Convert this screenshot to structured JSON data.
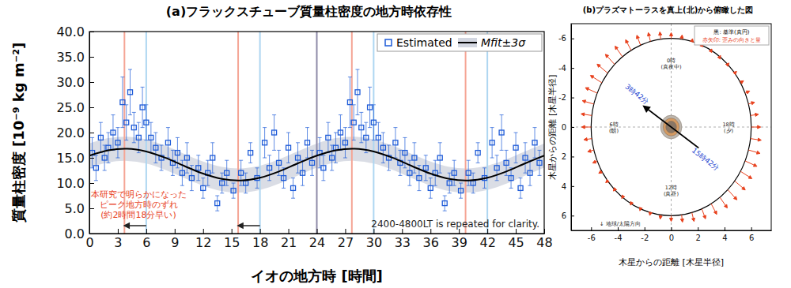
{
  "chart_data": [
    {
      "type": "scatter",
      "title": "(a)フラックスチューブ質量柱密度の地方時依存性",
      "x_label": "イオの地方時 [時間]",
      "y_label": "質量柱密度 [10⁻⁹ kg m⁻²]",
      "xlim": [
        0,
        48
      ],
      "ylim": [
        0,
        40
      ],
      "xticks": [
        0,
        3,
        6,
        9,
        12,
        15,
        18,
        21,
        24,
        27,
        30,
        33,
        36,
        39,
        42,
        45,
        48
      ],
      "yticks": [
        {
          "value": 0,
          "label": "0.0"
        },
        {
          "value": 5,
          "label": "5.0"
        },
        {
          "value": 10,
          "label": "10.0"
        },
        {
          "value": 15,
          "label": "15.0"
        },
        {
          "value": 20,
          "label": "20.0"
        },
        {
          "value": 25,
          "label": "25.0"
        },
        {
          "value": 30,
          "label": "30.0"
        },
        {
          "value": 35,
          "label": "35.0"
        },
        {
          "value": 40,
          "label": "40.0"
        }
      ],
      "legend": "upper right",
      "series": [
        {
          "name": "Estimated",
          "type": "scatter",
          "marker": "square",
          "color": "#1e5bd8",
          "x": [
            0.3,
            0.7,
            1.2,
            1.6,
            2.0,
            2.5,
            3.0,
            3.5,
            3.9,
            4.3,
            4.7,
            5.2,
            5.6,
            6.0,
            6.5,
            7.0,
            7.6,
            8.3,
            8.8,
            9.3,
            9.8,
            10.3,
            10.8,
            11.5,
            12.0,
            12.5,
            13.0,
            13.5,
            14.0,
            14.5,
            15.2,
            16.0,
            16.5,
            17.0,
            17.7,
            18.5,
            19.0,
            19.5,
            20.0,
            20.5,
            21.0,
            21.5,
            22.0,
            22.5,
            23.0,
            23.5,
            24.3,
            24.7,
            25.2,
            25.6,
            26.0,
            26.5,
            27.0,
            27.5,
            27.9,
            28.3,
            28.7,
            29.2,
            29.6,
            30.0,
            30.5,
            31.0,
            31.6,
            32.3,
            32.8,
            33.3,
            33.8,
            34.3,
            34.8,
            35.5,
            36.0,
            36.5,
            37.0,
            37.5,
            38.0,
            38.5,
            39.2,
            40.0,
            40.5,
            41.0,
            41.7,
            42.5,
            43.0,
            43.5,
            44.0,
            44.5,
            45.0,
            45.5,
            46.0,
            46.5,
            47.0,
            47.5
          ],
          "values": [
            16,
            13,
            19,
            15,
            17,
            20,
            18,
            26,
            22,
            28,
            21,
            19,
            25,
            22,
            19,
            17,
            15,
            18,
            14,
            16,
            12,
            15,
            11,
            13,
            9,
            12,
            15,
            6,
            10,
            12,
            8.5,
            12,
            10,
            16,
            11,
            18,
            13,
            20,
            14,
            11,
            17,
            9,
            15,
            12,
            18,
            14,
            16,
            13,
            19,
            15,
            17,
            20,
            18,
            26,
            22,
            28,
            21,
            19,
            25,
            22,
            19,
            17,
            15,
            18,
            14,
            16,
            12,
            15,
            11,
            13,
            9,
            12,
            15,
            6,
            10,
            12,
            8.5,
            12,
            10,
            16,
            11,
            18,
            13,
            20,
            14,
            11,
            17,
            9,
            15,
            12,
            18,
            14
          ],
          "errors": [
            3,
            2.5,
            3,
            2.5,
            3,
            3.5,
            3,
            5,
            3.5,
            4.5,
            3,
            3,
            4,
            3.5,
            3,
            3,
            2.5,
            3,
            2.5,
            3,
            2.5,
            3,
            2.5,
            2.5,
            2,
            2.5,
            3,
            1.5,
            2,
            2.5,
            1.5,
            2.5,
            2,
            2,
            2,
            3,
            2.5,
            3.5,
            2.5,
            2,
            3,
            2,
            3,
            2.5,
            3,
            2.5,
            3,
            2.5,
            3,
            2.5,
            3,
            3.5,
            3,
            5,
            3.5,
            4.5,
            3,
            3,
            4,
            3.5,
            3,
            3,
            2.5,
            3,
            2.5,
            3,
            2.5,
            3,
            2.5,
            2.5,
            2,
            2.5,
            3,
            1.5,
            2,
            2.5,
            1.5,
            2.5,
            2,
            2,
            2,
            3,
            2.5,
            3.5,
            2.5,
            2,
            3,
            2,
            3,
            2.5,
            3,
            2.5
          ]
        },
        {
          "name": "Mfit±3σ",
          "type": "line",
          "color": "#000000",
          "x": [
            0,
            2,
            4,
            6,
            8,
            10,
            12,
            14,
            16,
            18,
            20,
            22,
            24,
            26,
            28,
            30,
            32,
            34,
            36,
            38,
            40,
            42,
            44,
            46,
            48
          ],
          "values": [
            15.43,
            16.49,
            16.79,
            16.25,
            15.01,
            13.4,
            11.87,
            10.81,
            10.51,
            11.05,
            12.29,
            13.9,
            15.43,
            16.49,
            16.79,
            16.25,
            15.01,
            13.4,
            11.87,
            10.81,
            10.51,
            11.05,
            12.29,
            13.9,
            15.43
          ],
          "lower": [
            13.03,
            14.09,
            14.39,
            13.85,
            12.61,
            11.0,
            9.47,
            8.41,
            8.11,
            8.65,
            9.89,
            11.5,
            13.03,
            14.09,
            14.39,
            13.85,
            12.61,
            11.0,
            9.47,
            8.41,
            8.11,
            8.65,
            9.89,
            11.5,
            13.03
          ],
          "upper": [
            17.83,
            18.89,
            19.19,
            18.65,
            17.41,
            15.8,
            14.27,
            13.21,
            12.91,
            13.45,
            14.69,
            16.3,
            17.83,
            18.89,
            19.19,
            18.65,
            17.41,
            15.8,
            14.27,
            13.21,
            12.91,
            13.45,
            14.69,
            16.3,
            17.83
          ]
        }
      ],
      "vlines": [
        {
          "x": 3.7,
          "color": "#f5a595"
        },
        {
          "x": 15.7,
          "color": "#f5a595"
        },
        {
          "x": 27.7,
          "color": "#f5a595"
        },
        {
          "x": 39.7,
          "color": "#f5a595"
        },
        {
          "x": 6.0,
          "color": "#aed6f1"
        },
        {
          "x": 18.0,
          "color": "#aed6f1"
        },
        {
          "x": 30.0,
          "color": "#aed6f1"
        },
        {
          "x": 42.0,
          "color": "#aed6f1"
        },
        {
          "x": 24.0,
          "color": "#8e8aa8"
        }
      ],
      "annotation": {
        "lines": [
          "本研究で明らかになった",
          "ピーク地方時のずれ",
          "(約2時間18分早い)"
        ],
        "color": "#e8401c"
      },
      "shift_arrows": [
        {
          "from": 6.0,
          "to": 3.7
        },
        {
          "from": 18.0,
          "to": 15.7
        }
      ],
      "note": "2400-4800LT is repeated for clarity."
    },
    {
      "type": "vector",
      "title": "(b)プラズマトーラスを真上(北)から俯瞰した図",
      "x_label": "木星からの距離 [木星半径]",
      "y_label": "木星からの距離 [木星半径]",
      "xlim": [
        -7.5,
        7.5
      ],
      "ylim": [
        7,
        -7
      ],
      "xticks": [
        -6,
        -4,
        -2,
        0,
        2,
        4,
        6
      ],
      "yticks": [
        -6,
        -4,
        -2,
        0,
        2,
        4,
        6
      ],
      "legend": "upper right",
      "reference": {
        "name": "黒: 基準(真円)",
        "radius": 6,
        "color": "#000000"
      },
      "arrows": {
        "name": "赤矢印: 歪みの向きと量",
        "color": "#e8401c",
        "lt": [
          0,
          0.5,
          1,
          1.5,
          2,
          2.5,
          3,
          3.5,
          4,
          4.5,
          5,
          5.5,
          6,
          6.5,
          7,
          7.5,
          8,
          8.5,
          9,
          9.5,
          10,
          10.5,
          11,
          11.5,
          12,
          12.5,
          13,
          13.5,
          14,
          14.5,
          15,
          15.5,
          16,
          16.5,
          17,
          17.5,
          18,
          18.5,
          19,
          19.5,
          20,
          20.5,
          21,
          21.5,
          22,
          22.5,
          23,
          23.5
        ],
        "values": [
          0.39,
          0.5,
          0.62,
          0.73,
          0.83,
          0.91,
          0.97,
          1.0,
          0.99,
          0.96,
          0.9,
          0.81,
          0.71,
          0.6,
          0.48,
          0.37,
          0.27,
          0.19,
          0.13,
          0.1,
          0.11,
          0.14,
          0.2,
          0.29,
          0.39,
          0.5,
          0.62,
          0.73,
          0.83,
          0.91,
          0.97,
          1.0,
          0.99,
          0.96,
          0.9,
          0.81,
          0.71,
          0.6,
          0.48,
          0.37,
          0.27,
          0.19,
          0.13,
          0.1,
          0.11,
          0.14,
          0.2,
          0.29
        ]
      },
      "planet_radius": 0.8,
      "peak_axis": {
        "lt": [
          3.7,
          15.7
        ],
        "radius": 2.5,
        "labels": [
          "3時42分",
          "15時42分"
        ],
        "color": "#1a3fd0"
      },
      "lt_labels": [
        {
          "lt": 0,
          "lines": [
            "0時",
            "(真夜中)"
          ]
        },
        {
          "lt": 6,
          "lines": [
            "6時",
            "(朝)"
          ]
        },
        {
          "lt": 12,
          "lines": [
            "12時",
            "(真昼)"
          ]
        },
        {
          "lt": 18,
          "lines": [
            "18時",
            "(夕)"
          ]
        }
      ],
      "direction_label": "↓ 地球/太陽方向"
    }
  ]
}
